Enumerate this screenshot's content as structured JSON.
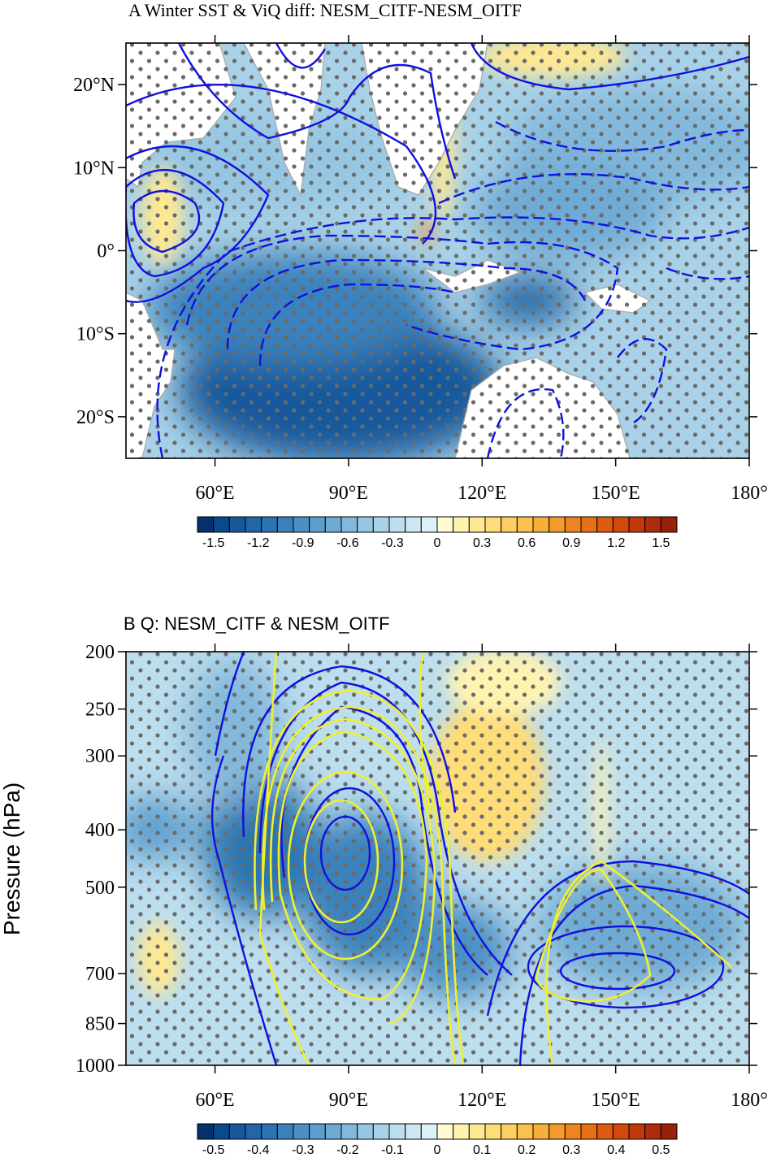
{
  "chart_data": [
    {
      "type": "map",
      "title": "A Winter SST & ViQ diff: NESM_CITF-NESM_OITF",
      "xlim": [
        40,
        180
      ],
      "xticks": [
        {
          "value": 60,
          "label": "60°E"
        },
        {
          "value": 90,
          "label": "90°E"
        },
        {
          "value": 120,
          "label": "120°E"
        },
        {
          "value": 150,
          "label": "150°E"
        },
        {
          "value": 180,
          "label": "180°"
        }
      ],
      "ylim": [
        -25,
        25
      ],
      "yticks": [
        {
          "value": 20,
          "label": "20°N"
        },
        {
          "value": 10,
          "label": "10°N"
        },
        {
          "value": 0,
          "label": "0°"
        },
        {
          "value": -10,
          "label": "10°S"
        },
        {
          "value": -20,
          "label": "20°S"
        }
      ],
      "colorbar_ticks": [
        -1.5,
        -1.2,
        -0.9,
        -0.6,
        -0.3,
        0,
        0.3,
        0.6,
        0.9,
        1.2,
        1.5
      ],
      "colormap": [
        "#08306b",
        "#0b4a8a",
        "#15599b",
        "#2166a6",
        "#2c74b0",
        "#3a81bb",
        "#4a8fc5",
        "#5b9dcd",
        "#6eaad4",
        "#82b8dc",
        "#96c6e2",
        "#a9d2e8",
        "#bcdeee",
        "#cde7f3",
        "#ddf0f8",
        "#fffbd2",
        "#fff3b0",
        "#fee892",
        "#fedc78",
        "#fdcf62",
        "#fbc04d",
        "#f8ae3b",
        "#f49a2c",
        "#ef8520",
        "#e87017",
        "#de5c10",
        "#d1490c",
        "#c1390a",
        "#ad2c0a",
        "#98210b"
      ]
    },
    {
      "type": "cross-section",
      "title": "B Q: NESM_CITF & NESM_OITF",
      "ylabel": "Pressure (hPa)",
      "yscale": "log",
      "xlim": [
        40,
        180
      ],
      "xticks": [
        {
          "value": 60,
          "label": "60°E"
        },
        {
          "value": 90,
          "label": "90°E"
        },
        {
          "value": 120,
          "label": "120°E"
        },
        {
          "value": 150,
          "label": "150°E"
        },
        {
          "value": 180,
          "label": "180°"
        }
      ],
      "ylim": [
        1000,
        200
      ],
      "yticks": [
        200,
        250,
        300,
        400,
        500,
        700,
        850,
        1000
      ],
      "colorbar_ticks": [
        -0.5,
        -0.4,
        -0.3,
        -0.2,
        -0.1,
        0,
        0.1,
        0.2,
        0.3,
        0.4,
        0.5
      ],
      "colormap": [
        "#08306b",
        "#0b4a8a",
        "#15599b",
        "#2166a6",
        "#2c74b0",
        "#3a81bb",
        "#4a8fc5",
        "#5b9dcd",
        "#6eaad4",
        "#82b8dc",
        "#96c6e2",
        "#a9d2e8",
        "#bcdeee",
        "#cde7f3",
        "#ddf0f8",
        "#fffbd2",
        "#fff3b0",
        "#fee892",
        "#fedc78",
        "#fdcf62",
        "#fbc04d",
        "#f8ae3b",
        "#f49a2c",
        "#ef8520",
        "#e87017",
        "#de5c10",
        "#d1490c",
        "#c1390a",
        "#ad2c0a",
        "#98210b"
      ]
    }
  ]
}
